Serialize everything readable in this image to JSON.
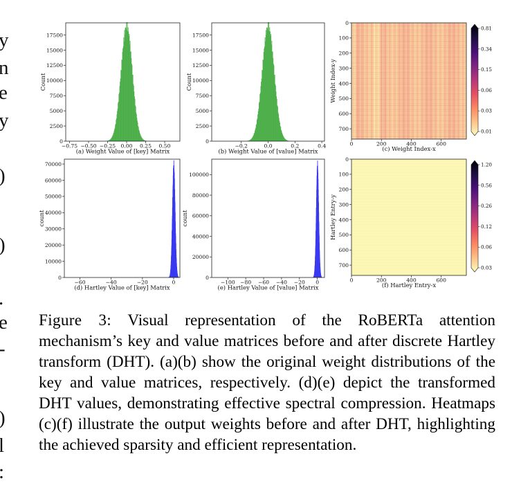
{
  "figure": {
    "caption_label": "Figure 3:",
    "caption_text": "Visual representation of the RoBERTa attention mechanism’s key and value matrices before and after discrete Hartley transform (DHT). (a)(b) show the original weight distributions of the key and value matrices, respectively. (d)(e) depict the transformed DHT values, demonstrating effective spectral compression. Heatmaps (c)(f) illustrate the output weights before and after DHT, highlighting the achieved sparsity and efficient representation."
  },
  "margin_glyphs": [
    "y",
    "n",
    "e",
    "y",
    ")",
    ")",
    ".",
    "e",
    "-",
    ")",
    "l",
    ":"
  ],
  "colors": {
    "green": "#4daf4a",
    "blue": "#3b3bf0",
    "heat_low": "#fcf9b6",
    "heat_high": "#000004"
  },
  "chart_data": [
    {
      "id": "a",
      "type": "histogram",
      "title": "(a) Weight Value of [key] Matrix",
      "ylabel": "Count",
      "xlim": [
        -0.8,
        0.7
      ],
      "ylim": [
        0,
        19500
      ],
      "xticks": [
        "−0.75",
        "−0.50",
        "−0.25",
        "0.00",
        "0.25",
        "0.50"
      ],
      "xtick_values": [
        -0.75,
        -0.5,
        -0.25,
        0,
        0.25,
        0.5
      ],
      "yticks": [
        "0",
        "2500",
        "5000",
        "7500",
        "10000",
        "12500",
        "15000",
        "17500"
      ],
      "ytick_values": [
        0,
        2500,
        5000,
        7500,
        10000,
        12500,
        15000,
        17500
      ],
      "peak": {
        "x": 0.0,
        "count": 19000
      },
      "spread": 0.075,
      "color": "#4daf4a"
    },
    {
      "id": "b",
      "type": "histogram",
      "title": "(b) Weight Value of [value] Matrix",
      "ylabel": "Count",
      "xlim": [
        -0.42,
        0.42
      ],
      "ylim": [
        0,
        19500
      ],
      "xticks": [
        "−0.2",
        "0.0",
        "0.2",
        "0.4"
      ],
      "xtick_values": [
        -0.2,
        0,
        0.2,
        0.4
      ],
      "yticks": [
        "0",
        "2500",
        "5000",
        "7500",
        "10000",
        "12500",
        "15000",
        "17500"
      ],
      "ytick_values": [
        0,
        2500,
        5000,
        7500,
        10000,
        12500,
        15000,
        17500
      ],
      "peak": {
        "x": 0.0,
        "count": 19000
      },
      "spread": 0.045,
      "color": "#4daf4a"
    },
    {
      "id": "c",
      "type": "heatmap",
      "xlabel": "(c) Weight Index-x",
      "ylabel": "Weight Index-y",
      "xlim": [
        0,
        768
      ],
      "ylim": [
        0,
        768
      ],
      "xticks": [
        "0",
        "200",
        "400",
        "600"
      ],
      "xtick_values": [
        0,
        200,
        400,
        600
      ],
      "yticks": [
        "0",
        "100",
        "200",
        "300",
        "400",
        "500",
        "600",
        "700"
      ],
      "ytick_values": [
        0,
        100,
        200,
        300,
        400,
        500,
        600,
        700
      ],
      "colorbar": [
        "0.81",
        "0.34",
        "0.15",
        "0.06",
        "0.03",
        "0.01"
      ],
      "light_bands_x": [
        [
          0,
          30
        ],
        [
          150,
          190
        ]
      ]
    },
    {
      "id": "d",
      "type": "histogram",
      "title": "(d) Hartley Value of [key] Matrix",
      "ylabel": "count",
      "xlim": [
        -70,
        4
      ],
      "ylim": [
        0,
        73000
      ],
      "xticks": [
        "−60",
        "−40",
        "−20",
        "0"
      ],
      "xtick_values": [
        -60,
        -40,
        -20,
        0
      ],
      "yticks": [
        "0",
        "10000",
        "20000",
        "30000",
        "40000",
        "50000",
        "60000",
        "70000"
      ],
      "ytick_values": [
        0,
        10000,
        20000,
        30000,
        40000,
        50000,
        60000,
        70000
      ],
      "peak": {
        "x": 0.0,
        "count": 70000
      },
      "spread": 0.9,
      "color": "#3b3bf0"
    },
    {
      "id": "e",
      "type": "histogram",
      "title": "(e) Hartley Value of [value] Matrix",
      "ylabel": "count",
      "xlim": [
        -118,
        8
      ],
      "ylim": [
        0,
        115000
      ],
      "xticks": [
        "−100",
        "−80",
        "−60",
        "−40",
        "−20",
        "0"
      ],
      "xtick_values": [
        -100,
        -80,
        -60,
        -40,
        -20,
        0
      ],
      "yticks": [
        "0",
        "20000",
        "40000",
        "60000",
        "80000",
        "100000"
      ],
      "ytick_values": [
        0,
        20000,
        40000,
        60000,
        80000,
        100000
      ],
      "peak": {
        "x": 0.0,
        "count": 110000
      },
      "spread": 1.4,
      "color": "#3b3bf0"
    },
    {
      "id": "f",
      "type": "heatmap",
      "xlabel": "(f) Hartley Entry-x",
      "ylabel": "Hartley Entry-y",
      "xlim": [
        0,
        768
      ],
      "ylim": [
        0,
        768
      ],
      "xticks": [
        "0",
        "200",
        "400",
        "600"
      ],
      "xtick_values": [
        0,
        200,
        400,
        600
      ],
      "yticks": [
        "0",
        "100",
        "200",
        "300",
        "400",
        "500",
        "600",
        "700"
      ],
      "ytick_values": [
        0,
        100,
        200,
        300,
        400,
        500,
        600,
        700
      ],
      "colorbar": [
        "1.20",
        "0.56",
        "0.26",
        "0.12",
        "0.06",
        "0.03"
      ]
    }
  ]
}
